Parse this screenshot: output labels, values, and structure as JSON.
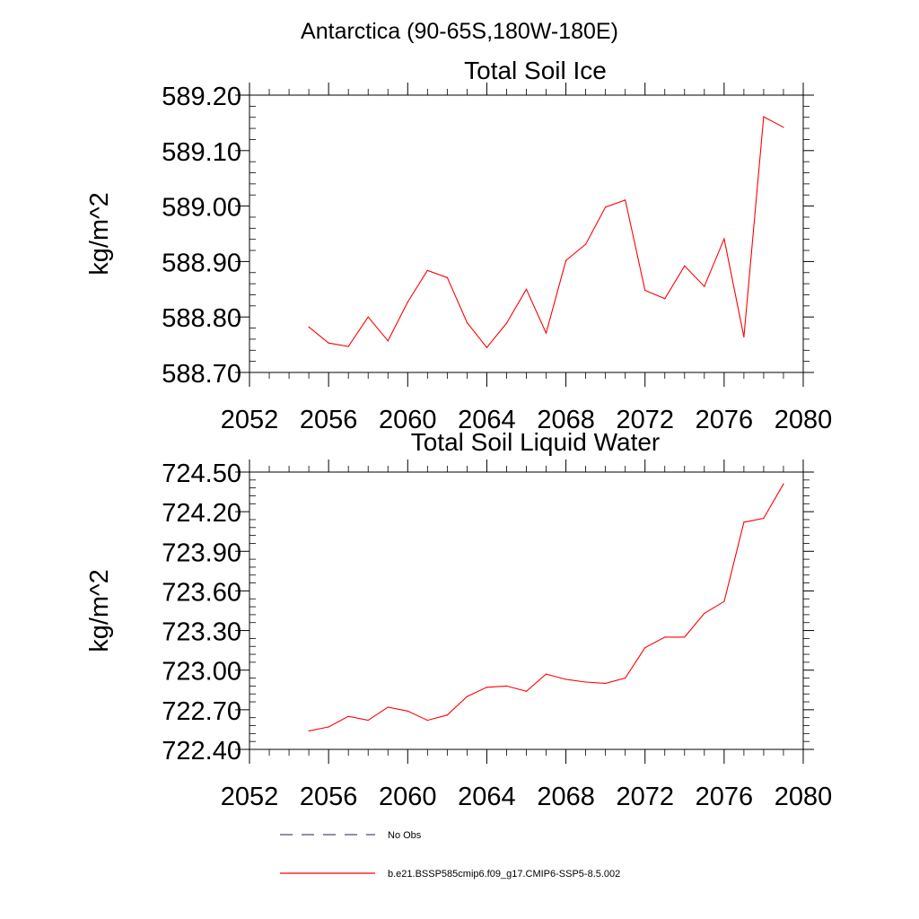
{
  "figure_title": "Antarctica (90-65S,180W-180E)",
  "colors": {
    "series": "#ff0000",
    "obs": "#4a4a7a",
    "axis": "#000000"
  },
  "chart_data": [
    {
      "type": "line",
      "title": "Total Soil Ice",
      "ylabel": "kg/m^2",
      "xlabel": "",
      "xlim": [
        2052,
        2080
      ],
      "ylim": [
        588.7,
        589.2
      ],
      "x_ticks": [
        "2052",
        "2056",
        "2060",
        "2064",
        "2068",
        "2072",
        "2076",
        "2080"
      ],
      "y_ticks": [
        "588.70",
        "588.80",
        "588.90",
        "589.00",
        "589.10",
        "589.20"
      ],
      "grid": false,
      "series": [
        {
          "name": "b.e21.BSSP585cmip6.f09_g17.CMIP6-SSP5-8.5.002",
          "x": [
            2055,
            2056,
            2057,
            2058,
            2059,
            2060,
            2061,
            2062,
            2063,
            2064,
            2065,
            2066,
            2067,
            2068,
            2069,
            2070,
            2071,
            2072,
            2073,
            2074,
            2075,
            2076,
            2077,
            2078,
            2079
          ],
          "values": [
            588.782,
            588.753,
            588.747,
            588.8,
            588.757,
            588.827,
            588.884,
            588.871,
            588.79,
            588.745,
            588.789,
            588.85,
            588.771,
            588.902,
            588.931,
            588.998,
            589.011,
            588.848,
            588.833,
            588.892,
            588.855,
            588.941,
            588.764,
            589.161,
            589.142
          ]
        }
      ]
    },
    {
      "type": "line",
      "title": "Total Soil Liquid Water",
      "ylabel": "kg/m^2",
      "xlabel": "",
      "xlim": [
        2052,
        2080
      ],
      "ylim": [
        722.4,
        724.5
      ],
      "x_ticks": [
        "2052",
        "2056",
        "2060",
        "2064",
        "2068",
        "2072",
        "2076",
        "2080"
      ],
      "y_ticks": [
        "722.40",
        "722.70",
        "723.00",
        "723.30",
        "723.60",
        "723.90",
        "724.20",
        "724.50"
      ],
      "grid": false,
      "series": [
        {
          "name": "b.e21.BSSP585cmip6.f09_g17.CMIP6-SSP5-8.5.002",
          "x": [
            2055,
            2056,
            2057,
            2058,
            2059,
            2060,
            2061,
            2062,
            2063,
            2064,
            2065,
            2066,
            2067,
            2068,
            2069,
            2070,
            2071,
            2072,
            2073,
            2074,
            2075,
            2076,
            2077,
            2078,
            2079
          ],
          "values": [
            722.54,
            722.57,
            722.65,
            722.62,
            722.72,
            722.69,
            722.62,
            722.66,
            722.8,
            722.87,
            722.88,
            722.84,
            722.97,
            722.93,
            722.91,
            722.9,
            722.94,
            723.17,
            723.25,
            723.25,
            723.43,
            723.52,
            724.12,
            724.15,
            724.41
          ]
        }
      ]
    }
  ],
  "legend": {
    "placement": "bottom",
    "items": [
      {
        "label": "No Obs",
        "style": "dashed"
      },
      {
        "label": "b.e21.BSSP585cmip6.f09_g17.CMIP6-SSP5-8.5.002",
        "style": "solid"
      }
    ]
  }
}
